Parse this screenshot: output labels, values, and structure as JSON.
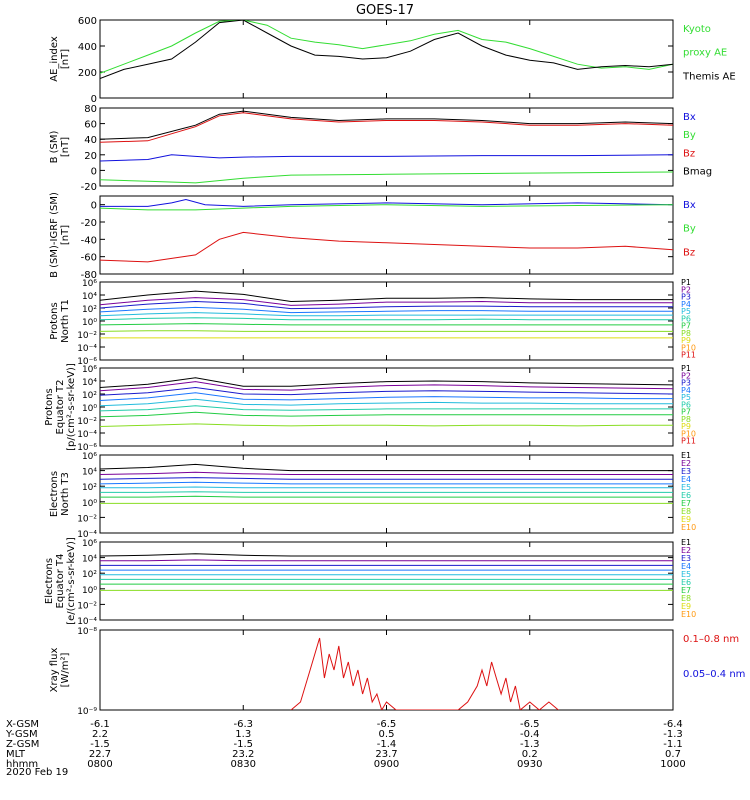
{
  "title": "GOES-17",
  "date_label": "2020 Feb 19",
  "colors": {
    "black": "#000000",
    "green": "#33dd33",
    "red": "#dd1111",
    "blue": "#1111dd",
    "ramp": [
      "#000000",
      "#7a0099",
      "#1a1acc",
      "#1a77ff",
      "#22bbdd",
      "#22ccaa",
      "#22cc44",
      "#88dd22",
      "#dddd11",
      "#ff9911",
      "#dd1111"
    ]
  },
  "chart_data": [
    {
      "type": "line",
      "id": "ae",
      "ylabel": [
        "AE_index",
        "[nT]"
      ],
      "ylim": [
        0,
        600
      ],
      "yticks": [
        "0",
        "200",
        "400",
        "600"
      ],
      "legend": [
        {
          "text": "Kyoto",
          "color": "green"
        },
        {
          "text": "proxy AE",
          "color": "green"
        },
        {
          "text": "Themis AE",
          "color": "black"
        }
      ],
      "series": [
        {
          "name": "Kyoto proxy AE",
          "color": "green",
          "x": [
            0,
            5,
            10,
            15,
            20,
            25,
            30,
            35,
            40,
            45,
            50,
            55,
            60,
            65,
            70,
            75,
            80,
            85,
            90,
            95,
            100,
            105,
            110,
            115,
            120
          ],
          "y": [
            190,
            260,
            330,
            400,
            500,
            590,
            600,
            560,
            460,
            430,
            410,
            380,
            410,
            440,
            490,
            520,
            450,
            430,
            380,
            320,
            260,
            230,
            240,
            220,
            260
          ]
        },
        {
          "name": "Themis AE",
          "color": "black",
          "x": [
            0,
            5,
            10,
            15,
            20,
            25,
            30,
            35,
            40,
            45,
            50,
            55,
            60,
            65,
            70,
            75,
            80,
            85,
            90,
            95,
            100,
            105,
            110,
            115,
            120
          ],
          "y": [
            150,
            220,
            260,
            300,
            430,
            580,
            600,
            500,
            400,
            330,
            320,
            300,
            310,
            360,
            450,
            500,
            400,
            330,
            290,
            270,
            220,
            240,
            250,
            240,
            260
          ]
        }
      ]
    },
    {
      "type": "line",
      "id": "bsm",
      "ylabel": [
        "B (SM)",
        "[nT]"
      ],
      "ylim": [
        -20,
        80
      ],
      "yticks": [
        "-20",
        "0",
        "20",
        "40",
        "60",
        "80"
      ],
      "legend": [
        {
          "text": "Bx",
          "color": "blue"
        },
        {
          "text": "By",
          "color": "green"
        },
        {
          "text": "Bz",
          "color": "red"
        },
        {
          "text": "Bmag",
          "color": "black"
        }
      ],
      "series": [
        {
          "name": "Bmag",
          "color": "black",
          "x": [
            0,
            10,
            20,
            25,
            30,
            40,
            50,
            60,
            70,
            80,
            90,
            100,
            110,
            120
          ],
          "y": [
            40,
            42,
            58,
            72,
            76,
            68,
            64,
            66,
            66,
            64,
            60,
            60,
            62,
            60
          ]
        },
        {
          "name": "Bz",
          "color": "red",
          "x": [
            0,
            10,
            20,
            25,
            30,
            40,
            50,
            60,
            70,
            80,
            90,
            100,
            110,
            120
          ],
          "y": [
            36,
            38,
            56,
            70,
            74,
            66,
            62,
            64,
            64,
            62,
            58,
            58,
            60,
            58
          ]
        },
        {
          "name": "Bx",
          "color": "blue",
          "x": [
            0,
            10,
            15,
            20,
            25,
            30,
            40,
            60,
            80,
            100,
            120
          ],
          "y": [
            12,
            14,
            20,
            18,
            16,
            17,
            18,
            18,
            19,
            19,
            20
          ]
        },
        {
          "name": "By",
          "color": "green",
          "x": [
            0,
            10,
            20,
            30,
            40,
            60,
            80,
            100,
            120
          ],
          "y": [
            -12,
            -14,
            -16,
            -10,
            -6,
            -5,
            -4,
            -3,
            -2
          ]
        }
      ]
    },
    {
      "type": "line",
      "id": "bdiff",
      "ylabel": [
        "B (SM)-IGRF (SM)",
        "[nT]"
      ],
      "ylim": [
        -80,
        10
      ],
      "yticks": [
        "-80",
        "-60",
        "-40",
        "-20",
        "0"
      ],
      "legend": [
        {
          "text": "Bx",
          "color": "blue"
        },
        {
          "text": "By",
          "color": "green"
        },
        {
          "text": "Bz",
          "color": "red"
        }
      ],
      "series": [
        {
          "name": "Bz",
          "color": "red",
          "x": [
            0,
            10,
            20,
            25,
            30,
            40,
            50,
            60,
            70,
            80,
            90,
            100,
            110,
            120
          ],
          "y": [
            -64,
            -66,
            -58,
            -40,
            -32,
            -38,
            -42,
            -44,
            -46,
            -48,
            -50,
            -50,
            -48,
            -52
          ]
        },
        {
          "name": "Bx",
          "color": "blue",
          "x": [
            0,
            10,
            15,
            18,
            22,
            30,
            40,
            60,
            80,
            100,
            120
          ],
          "y": [
            -2,
            -2,
            2,
            6,
            0,
            -2,
            0,
            2,
            0,
            2,
            0
          ]
        },
        {
          "name": "By",
          "color": "green",
          "x": [
            0,
            10,
            20,
            30,
            40,
            60,
            80,
            100,
            120
          ],
          "y": [
            -4,
            -6,
            -6,
            -4,
            -2,
            0,
            -2,
            -1,
            0
          ]
        }
      ]
    },
    {
      "type": "line",
      "id": "pnorth",
      "scale": "log",
      "ylabel": [
        "Protons",
        "North T1"
      ],
      "ylim_exp": [
        -6,
        6
      ],
      "ytick_exps": [
        -6,
        -4,
        -2,
        0,
        2,
        4,
        6
      ],
      "legend": [
        "P1",
        "P2",
        "P3",
        "P4",
        "P5",
        "P6",
        "P7",
        "P8",
        "P9",
        "P10",
        "P11"
      ],
      "series_log": [
        [
          3.2,
          4.0,
          4.6,
          4.1,
          3.0,
          3.2,
          3.5,
          3.5,
          3.6,
          3.4,
          3.3,
          3.3,
          3.3
        ],
        [
          2.5,
          3.2,
          3.6,
          3.3,
          2.4,
          2.6,
          2.9,
          2.9,
          3.0,
          2.8,
          2.8,
          2.8,
          2.8
        ],
        [
          2.0,
          2.6,
          3.0,
          2.7,
          1.9,
          2.0,
          2.2,
          2.3,
          2.3,
          2.2,
          2.2,
          2.2,
          2.2
        ],
        [
          1.4,
          1.8,
          2.1,
          1.8,
          1.3,
          1.4,
          1.5,
          1.6,
          1.6,
          1.5,
          1.5,
          1.5,
          1.5
        ],
        [
          0.8,
          1.1,
          1.3,
          1.1,
          0.8,
          0.8,
          0.9,
          0.9,
          0.9,
          0.9,
          0.9,
          0.9,
          0.9
        ],
        [
          0.2,
          0.4,
          0.5,
          0.4,
          0.2,
          0.2,
          0.2,
          0.2,
          0.3,
          0.2,
          0.2,
          0.2,
          0.2
        ],
        [
          -0.6,
          -0.5,
          -0.4,
          -0.5,
          -0.6,
          -0.6,
          -0.6,
          -0.6,
          -0.6,
          -0.6,
          -0.6,
          -0.6,
          -0.6
        ],
        [
          -1.6,
          -1.5,
          -1.5,
          -1.6,
          -1.6,
          -1.6,
          -1.6,
          -1.6,
          -1.6,
          -1.6,
          -1.6,
          -1.6,
          -1.6
        ],
        [
          -2.6,
          -2.6,
          -2.6,
          -2.6,
          -2.6,
          -2.6,
          -2.6,
          -2.6,
          -2.6,
          -2.6,
          -2.6,
          -2.6,
          -2.6
        ]
      ]
    },
    {
      "type": "line",
      "id": "peq",
      "scale": "log",
      "ylabel": [
        "Protons",
        "Equator T2",
        "[p/(cm²-s-sr-keV)]"
      ],
      "ylim_exp": [
        -6,
        6
      ],
      "ytick_exps": [
        -6,
        -4,
        -2,
        0,
        2,
        4,
        6
      ],
      "legend": [
        "P1",
        "P2",
        "P3",
        "P4",
        "P5",
        "P6",
        "P7",
        "P8",
        "P9",
        "P10",
        "P11"
      ],
      "series_log": [
        [
          3.0,
          3.5,
          4.5,
          3.2,
          3.2,
          3.6,
          3.9,
          4.0,
          3.9,
          3.7,
          3.6,
          3.5,
          3.4
        ],
        [
          2.5,
          3.0,
          3.9,
          2.7,
          2.6,
          3.0,
          3.3,
          3.4,
          3.3,
          3.1,
          3.0,
          2.9,
          2.8
        ],
        [
          1.8,
          2.2,
          3.0,
          2.0,
          1.9,
          2.2,
          2.4,
          2.5,
          2.4,
          2.3,
          2.2,
          2.1,
          2.0
        ],
        [
          1.0,
          1.4,
          2.2,
          1.2,
          1.1,
          1.3,
          1.5,
          1.6,
          1.5,
          1.4,
          1.4,
          1.3,
          1.3
        ],
        [
          0.2,
          0.5,
          1.2,
          0.4,
          0.3,
          0.5,
          0.6,
          0.7,
          0.6,
          0.6,
          0.5,
          0.5,
          0.5
        ],
        [
          -0.6,
          -0.4,
          0.2,
          -0.4,
          -0.5,
          -0.4,
          -0.3,
          -0.3,
          -0.3,
          -0.3,
          -0.3,
          -0.3,
          -0.3
        ],
        [
          -1.5,
          -1.3,
          -0.8,
          -1.3,
          -1.4,
          -1.3,
          -1.2,
          -1.2,
          -1.2,
          -1.2,
          -1.2,
          -1.2,
          -1.2
        ],
        [
          -3.0,
          -2.8,
          -2.6,
          -2.8,
          -2.9,
          -2.8,
          -2.8,
          -2.9,
          -2.8,
          -2.8,
          -2.9,
          -2.8,
          -2.8
        ]
      ]
    },
    {
      "type": "line",
      "id": "enorth",
      "scale": "log",
      "ylabel": [
        "Electrons",
        "North T3"
      ],
      "ylim_exp": [
        -4,
        6
      ],
      "ytick_exps": [
        -4,
        -2,
        0,
        2,
        4,
        6
      ],
      "legend": [
        "E1",
        "E2",
        "E3",
        "E4",
        "E5",
        "E6",
        "E7",
        "E8",
        "E9",
        "E10"
      ],
      "series_log": [
        [
          4.2,
          4.4,
          4.8,
          4.3,
          4.0,
          4.0,
          4.0,
          4.0,
          4.0,
          4.0,
          4.0,
          4.0,
          4.0
        ],
        [
          3.5,
          3.6,
          3.8,
          3.6,
          3.5,
          3.5,
          3.5,
          3.5,
          3.5,
          3.5,
          3.5,
          3.5,
          3.5
        ],
        [
          2.9,
          3.0,
          3.1,
          3.0,
          2.9,
          2.9,
          2.9,
          2.9,
          2.9,
          2.9,
          2.9,
          2.9,
          2.9
        ],
        [
          2.3,
          2.4,
          2.5,
          2.4,
          2.3,
          2.3,
          2.3,
          2.3,
          2.3,
          2.3,
          2.3,
          2.3,
          2.3
        ],
        [
          1.8,
          1.8,
          1.9,
          1.8,
          1.8,
          1.8,
          1.8,
          1.8,
          1.8,
          1.8,
          1.8,
          1.8,
          1.8
        ],
        [
          1.2,
          1.2,
          1.3,
          1.2,
          1.2,
          1.2,
          1.2,
          1.2,
          1.2,
          1.2,
          1.2,
          1.2,
          1.2
        ],
        [
          0.6,
          0.6,
          0.7,
          0.6,
          0.6,
          0.6,
          0.6,
          0.6,
          0.6,
          0.6,
          0.6,
          0.6,
          0.6
        ],
        [
          -0.2,
          -0.2,
          -0.2,
          -0.2,
          -0.2,
          -0.2,
          -0.2,
          -0.2,
          -0.2,
          -0.2,
          -0.2,
          -0.2,
          -0.2
        ]
      ]
    },
    {
      "type": "line",
      "id": "eeq",
      "scale": "log",
      "ylabel": [
        "Electrons",
        "Equator T4",
        "[e/(cm²-s-sr-keV)]"
      ],
      "ylim_exp": [
        -4,
        6
      ],
      "ytick_exps": [
        -4,
        -2,
        0,
        2,
        4,
        6
      ],
      "legend": [
        "E1",
        "E2",
        "E3",
        "E4",
        "E5",
        "E6",
        "E7",
        "E8",
        "E9",
        "E10"
      ],
      "series_log": [
        [
          4.2,
          4.3,
          4.5,
          4.3,
          4.2,
          4.2,
          4.2,
          4.2,
          4.2,
          4.2,
          4.2,
          4.2,
          4.2
        ],
        [
          3.6,
          3.6,
          3.7,
          3.6,
          3.6,
          3.6,
          3.6,
          3.6,
          3.6,
          3.6,
          3.6,
          3.6,
          3.6
        ],
        [
          3.0,
          3.0,
          3.0,
          3.0,
          3.0,
          3.0,
          3.0,
          3.0,
          3.0,
          3.0,
          3.0,
          3.0,
          3.0
        ],
        [
          2.4,
          2.4,
          2.4,
          2.4,
          2.4,
          2.4,
          2.4,
          2.4,
          2.4,
          2.4,
          2.4,
          2.4,
          2.4
        ],
        [
          1.8,
          1.8,
          1.8,
          1.8,
          1.8,
          1.8,
          1.8,
          1.8,
          1.8,
          1.8,
          1.8,
          1.8,
          1.8
        ],
        [
          1.2,
          1.2,
          1.2,
          1.2,
          1.2,
          1.2,
          1.2,
          1.2,
          1.2,
          1.2,
          1.2,
          1.2,
          1.2
        ],
        [
          0.6,
          0.6,
          0.6,
          0.6,
          0.6,
          0.6,
          0.6,
          0.6,
          0.6,
          0.6,
          0.6,
          0.6,
          0.6
        ],
        [
          -0.2,
          -0.2,
          -0.2,
          -0.2,
          -0.2,
          -0.2,
          -0.2,
          -0.2,
          -0.2,
          -0.2,
          -0.2,
          -0.2,
          -0.2
        ]
      ]
    },
    {
      "type": "line",
      "id": "xray",
      "scale": "log",
      "ylabel": [
        "Xray flux",
        "[W/m²]"
      ],
      "ylim_exp": [
        -9,
        -8
      ],
      "ytick_exps": [
        -9,
        -8
      ],
      "legend": [
        {
          "text": "0.1–0.8 nm",
          "color": "red"
        },
        {
          "text": "0.05–0.4 nm",
          "color": "blue"
        }
      ],
      "series": [
        {
          "name": "0.1-0.8 nm",
          "color": "red",
          "x": [
            40,
            42,
            44,
            46,
            47,
            48,
            49,
            50,
            51,
            52,
            53,
            54,
            55,
            56,
            57,
            58,
            59,
            60,
            62,
            75,
            77,
            79,
            80,
            81,
            82,
            83,
            84,
            85,
            86,
            87,
            88,
            90,
            92,
            94,
            96
          ],
          "y": [
            -9.0,
            -8.9,
            -8.5,
            -8.1,
            -8.6,
            -8.3,
            -8.5,
            -8.2,
            -8.6,
            -8.4,
            -8.7,
            -8.5,
            -8.8,
            -8.6,
            -8.9,
            -8.8,
            -9.0,
            -8.9,
            -9.0,
            -9.0,
            -8.9,
            -8.7,
            -8.5,
            -8.7,
            -8.4,
            -8.6,
            -8.8,
            -8.6,
            -8.9,
            -8.7,
            -9.0,
            -8.9,
            -9.0,
            -8.9,
            -9.0
          ]
        }
      ]
    }
  ],
  "x_axis": {
    "xlim": [
      0,
      120
    ],
    "row_labels": [
      "X-GSM",
      "Y-GSM",
      "Z-GSM",
      "MLT",
      "hhmm"
    ],
    "columns": [
      {
        "x": 0,
        "values": [
          "-6.1",
          "2.2",
          "-1.5",
          "22.7",
          "0800"
        ]
      },
      {
        "x": 30,
        "values": [
          "-6.3",
          "1.3",
          "-1.5",
          "23.2",
          "0830"
        ]
      },
      {
        "x": 60,
        "values": [
          "-6.5",
          "0.5",
          "-1.4",
          "23.7",
          "0900"
        ]
      },
      {
        "x": 90,
        "values": [
          "-6.5",
          "-0.4",
          "-1.3",
          "0.2",
          "0930"
        ]
      },
      {
        "x": 120,
        "values": [
          "-6.4",
          "-1.3",
          "-1.1",
          "0.7",
          "1000"
        ]
      }
    ]
  }
}
